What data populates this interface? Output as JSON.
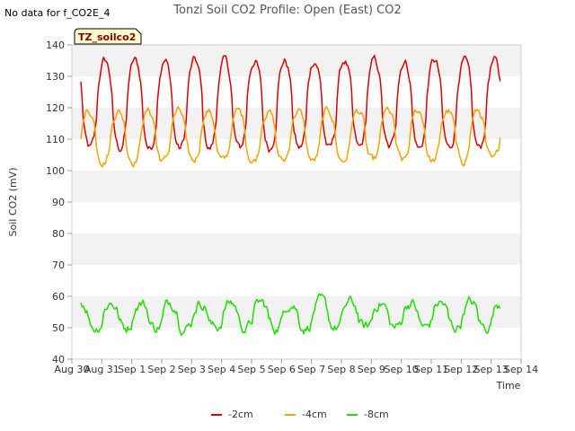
{
  "note": "No data for f_CO2E_4",
  "chart_data": {
    "type": "line",
    "title": "Tonzi Soil CO2 Profile: Open (East) CO2",
    "xlabel": "Time",
    "ylabel": "Soil CO2 (mV)",
    "ylim": [
      40,
      140
    ],
    "yticks": [
      40,
      50,
      60,
      70,
      80,
      90,
      100,
      110,
      120,
      130,
      140
    ],
    "xlim": [
      0,
      15
    ],
    "xtick_labels": [
      "Aug 30",
      "Aug 31",
      "Sep 1",
      "Sep 2",
      "Sep 3",
      "Sep 4",
      "Sep 5",
      "Sep 6",
      "Sep 7",
      "Sep 8",
      "Sep 9",
      "Sep 10",
      "Sep 11",
      "Sep 12",
      "Sep 13",
      "Sep 14"
    ],
    "box_label": "TZ_soilco2",
    "data_start_day": 0.3,
    "data_end_day": 14.3,
    "sample_step_day": 0.04,
    "series": [
      {
        "name": "-2cm",
        "color": "#dd0000",
        "base": 121,
        "amp": 14,
        "phase": 0.1,
        "noise": 2.2
      },
      {
        "name": "-4cm",
        "color": "#f5a300",
        "base": 111,
        "amp": 8,
        "phase": 0.55,
        "noise": 2.0
      },
      {
        "name": "-8cm",
        "color": "#22dd00",
        "base": 54,
        "amp": 4,
        "phase": 0.3,
        "noise": 2.8
      }
    ]
  }
}
